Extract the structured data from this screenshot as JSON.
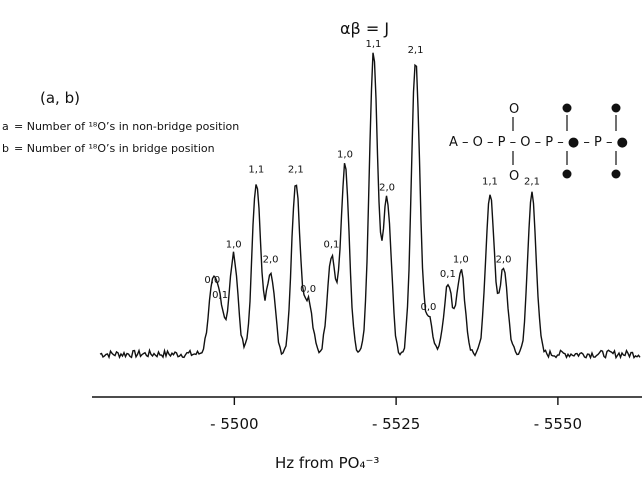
{
  "chart_data": {
    "type": "line",
    "header": "αβ = J",
    "legend_title": "(a, b)",
    "legend": [
      {
        "prefix": "a",
        "text": "= Number of ¹⁸O’s in non-bridge position"
      },
      {
        "prefix": "b",
        "text": "= Number of ¹⁸O’s in bridge position"
      }
    ],
    "xlabel": "Hz from PO₄⁻³",
    "xlim": [
      -5478,
      -5563
    ],
    "x_ticks": [
      -5500,
      -5525,
      -5550
    ],
    "x_tick_labels": [
      "- 5500",
      "- 5525",
      "- 5550"
    ],
    "peak_height_units": "relative",
    "peaks": [
      {
        "label": "0,0",
        "x": -5496.6,
        "h": 0.21
      },
      {
        "label": "0,1",
        "x": -5497.8,
        "h": 0.16
      },
      {
        "label": "1,0",
        "x": -5499.9,
        "h": 0.33
      },
      {
        "label": "1,1",
        "x": -5503.4,
        "h": 0.58
      },
      {
        "label": "2,0",
        "x": -5505.6,
        "h": 0.28
      },
      {
        "label": "2,1",
        "x": -5509.5,
        "h": 0.58
      },
      {
        "label": "0,0",
        "x": -5511.4,
        "h": 0.18
      },
      {
        "label": "0,1",
        "x": -5515.0,
        "h": 0.33
      },
      {
        "label": "1,0",
        "x": -5517.1,
        "h": 0.63
      },
      {
        "label": "1,1",
        "x": -5521.5,
        "h": 1.0
      },
      {
        "label": "2,0",
        "x": -5523.6,
        "h": 0.52
      },
      {
        "label": "2,1",
        "x": -5528.0,
        "h": 0.98
      },
      {
        "label": "0,0",
        "x": -5530.0,
        "h": 0.12
      },
      {
        "label": "0,1",
        "x": -5533.0,
        "h": 0.23
      },
      {
        "label": "1,0",
        "x": -5535.0,
        "h": 0.28
      },
      {
        "label": "1,1",
        "x": -5539.5,
        "h": 0.54
      },
      {
        "label": "2,0",
        "x": -5541.6,
        "h": 0.28
      },
      {
        "label": "2,1",
        "x": -5546.0,
        "h": 0.54
      }
    ],
    "structure": {
      "left": "A – O – P – O – P – ● – P – ●",
      "note": "phosphate chain; filled circles mark ¹⁸O positions"
    }
  }
}
